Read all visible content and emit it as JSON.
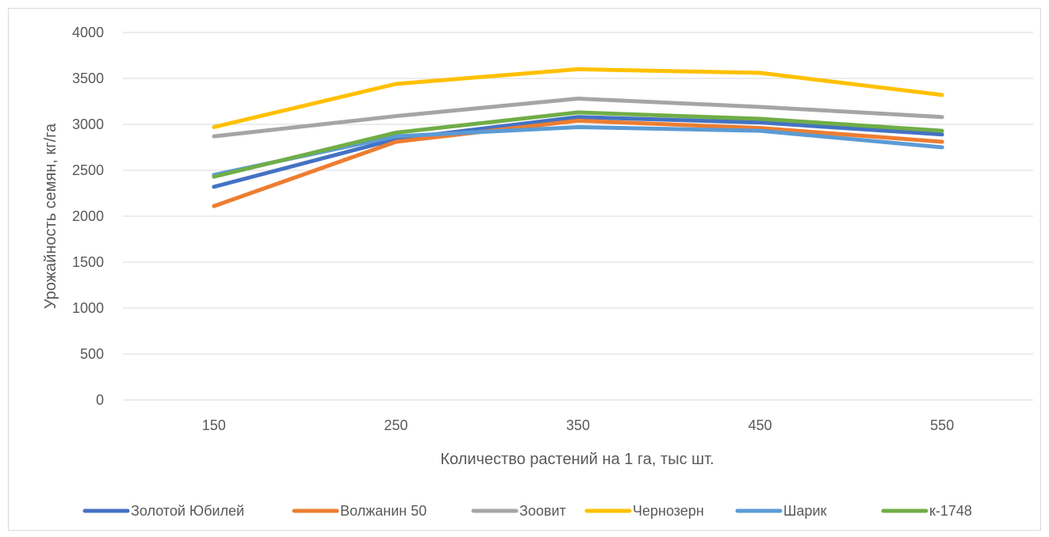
{
  "chart_data": {
    "type": "line",
    "title": "",
    "xlabel": "Количество растений на 1 га, тыс шт.",
    "ylabel": "Урожайность семян, кг/га",
    "categories": [
      "150",
      "250",
      "350",
      "450",
      "550"
    ],
    "ylim": [
      0,
      4000
    ],
    "yticks": [
      0,
      500,
      1000,
      1500,
      2000,
      2500,
      3000,
      3500,
      4000
    ],
    "grid": true,
    "legend_position": "bottom",
    "series": [
      {
        "name": "Золотой Юбилей",
        "color": "#4472C4",
        "values": [
          2320,
          2840,
          3080,
          3020,
          2890
        ]
      },
      {
        "name": "Волжанин 50",
        "color": "#ED7D31",
        "values": [
          2110,
          2810,
          3040,
          2960,
          2810
        ]
      },
      {
        "name": "Зоовит",
        "color": "#A5A5A5",
        "values": [
          2870,
          3090,
          3280,
          3190,
          3080
        ]
      },
      {
        "name": "Чернозерн",
        "color": "#FFC000",
        "values": [
          2970,
          3440,
          3600,
          3560,
          3320
        ]
      },
      {
        "name": "Шарик",
        "color": "#5B9BD5",
        "values": [
          2450,
          2870,
          2970,
          2930,
          2750
        ]
      },
      {
        "name": "к-1748",
        "color": "#70AD47",
        "values": [
          2430,
          2910,
          3130,
          3060,
          2930
        ]
      }
    ]
  }
}
